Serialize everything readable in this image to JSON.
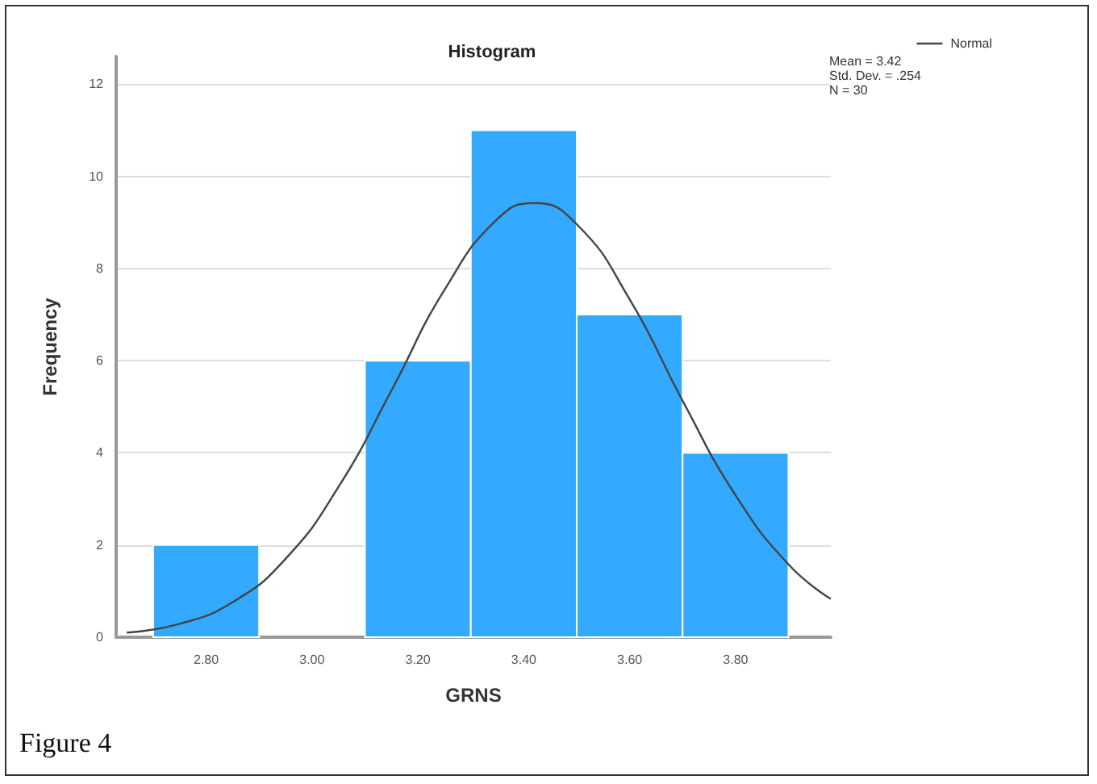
{
  "chart_data": {
    "type": "histogram",
    "title": "Histogram",
    "xlabel": "GRNS",
    "ylabel": "Frequency",
    "bins": [
      2.7,
      2.9,
      3.1,
      3.3,
      3.5,
      3.7,
      3.9
    ],
    "values": [
      2,
      0,
      6,
      11,
      7,
      4
    ],
    "color": "#33aaff",
    "series": [
      {
        "type": "line",
        "name": "Normal",
        "color": "#444444",
        "x": [
          2.65,
          2.75,
          2.85,
          2.95,
          3.05,
          3.15,
          3.25,
          3.35,
          3.42,
          3.5,
          3.6,
          3.7,
          3.8,
          3.9,
          3.98
        ],
        "values": [
          0.1,
          0.29,
          0.76,
          1.7,
          3.26,
          5.35,
          7.53,
          9.07,
          9.42,
          8.96,
          7.33,
          5.13,
          3.08,
          1.58,
          0.83
        ]
      }
    ],
    "xlim": [
      2.63,
      3.98
    ],
    "xticks": [
      {
        "value": 2.8,
        "label": "2.80"
      },
      {
        "value": 3.0,
        "label": "3.00"
      },
      {
        "value": 3.2,
        "label": "3.20"
      },
      {
        "value": 3.4,
        "label": "3.40"
      },
      {
        "value": 3.6,
        "label": "3.60"
      },
      {
        "value": 3.8,
        "label": "3.80"
      }
    ],
    "ylim": [
      0,
      12.6
    ],
    "yticks": [
      0,
      2,
      4,
      6,
      8,
      10,
      12
    ],
    "grid": "y",
    "legend": "top right",
    "marker": "none",
    "annotations": [
      "Mean = 3.42",
      "Std. Dev. = .254",
      "N = 30",
      "Figure 4"
    ]
  }
}
